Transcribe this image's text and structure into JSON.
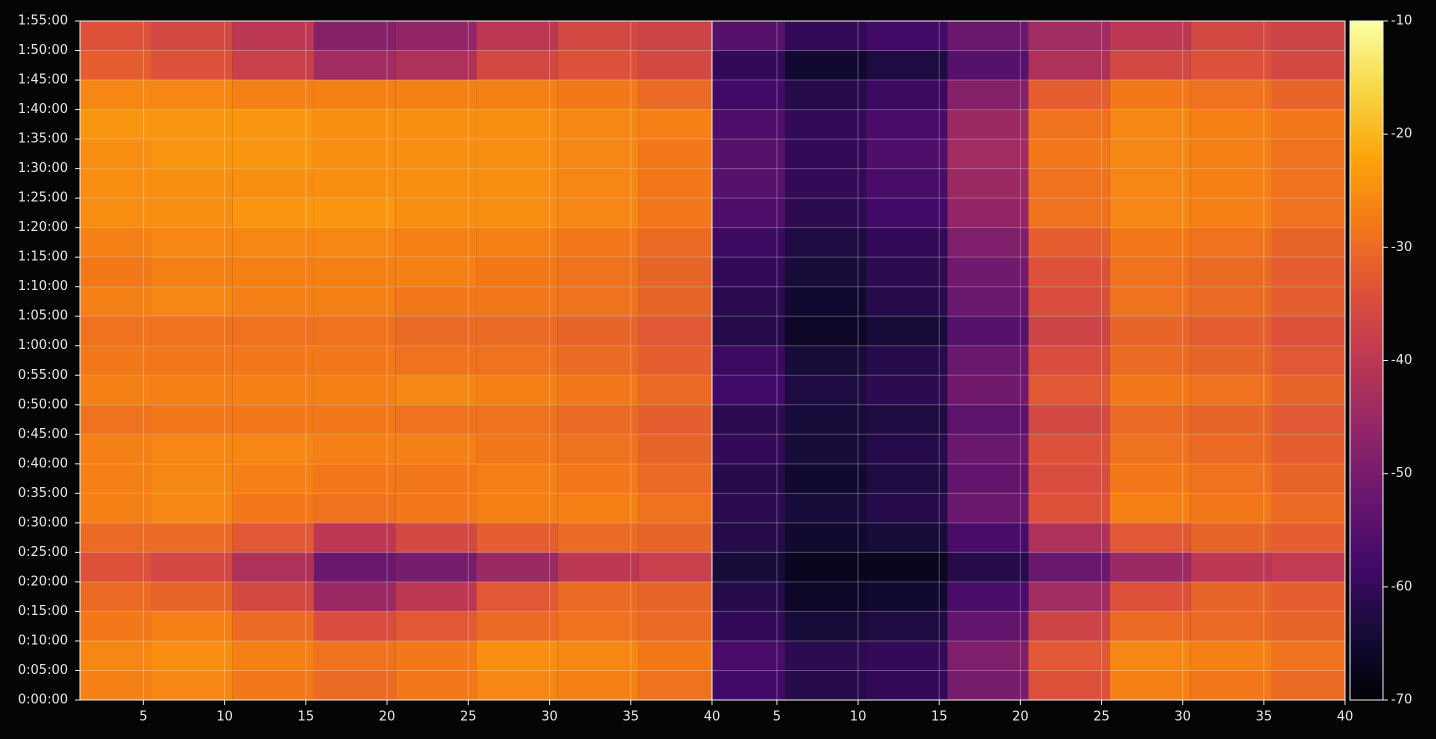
{
  "chart_data": {
    "type": "heatmap",
    "colormap": "inferno",
    "grid": true,
    "clim": [
      -70,
      -10
    ],
    "cticks": [
      -70,
      -60,
      -50,
      -40,
      -30,
      -20,
      -10
    ],
    "ylim": [
      0,
      6900
    ],
    "yticks": [
      {
        "value": 0,
        "label": "0:00:00"
      },
      {
        "value": 300,
        "label": "0:05:00"
      },
      {
        "value": 600,
        "label": "0:10:00"
      },
      {
        "value": 900,
        "label": "0:15:00"
      },
      {
        "value": 1200,
        "label": "0:20:00"
      },
      {
        "value": 1500,
        "label": "0:25:00"
      },
      {
        "value": 1800,
        "label": "0:30:00"
      },
      {
        "value": 2100,
        "label": "0:35:00"
      },
      {
        "value": 2400,
        "label": "0:40:00"
      },
      {
        "value": 2700,
        "label": "0:45:00"
      },
      {
        "value": 3000,
        "label": "0:50:00"
      },
      {
        "value": 3300,
        "label": "0:55:00"
      },
      {
        "value": 3600,
        "label": "1:00:00"
      },
      {
        "value": 3900,
        "label": "1:05:00"
      },
      {
        "value": 4200,
        "label": "1:10:00"
      },
      {
        "value": 4500,
        "label": "1:15:00"
      },
      {
        "value": 4800,
        "label": "1:20:00"
      },
      {
        "value": 5100,
        "label": "1:25:00"
      },
      {
        "value": 5400,
        "label": "1:30:00"
      },
      {
        "value": 5700,
        "label": "1:35:00"
      },
      {
        "value": 6000,
        "label": "1:40:00"
      },
      {
        "value": 6300,
        "label": "1:45:00"
      },
      {
        "value": 6600,
        "label": "1:50:00"
      },
      {
        "value": 6900,
        "label": "1:55:00"
      }
    ],
    "y": [
      150,
      450,
      750,
      1050,
      1350,
      1650,
      1950,
      2250,
      2550,
      2850,
      3150,
      3450,
      3750,
      4050,
      4350,
      4650,
      4950,
      5250,
      5550,
      5850,
      6150,
      6450,
      6750
    ],
    "series": [
      {
        "xlim": [
          1.1,
          40
        ],
        "xticks": [
          5,
          10,
          15,
          20,
          25,
          30,
          35,
          40
        ],
        "x": [
          3,
          8,
          13,
          18,
          23,
          28,
          33,
          38
        ],
        "values": [
          [
            -27,
            -26,
            -28,
            -30,
            -28,
            -26,
            -27,
            -29
          ],
          [
            -26,
            -25,
            -27,
            -29,
            -28,
            -25,
            -26,
            -28
          ],
          [
            -28,
            -27,
            -30,
            -35,
            -33,
            -30,
            -29,
            -30
          ],
          [
            -30,
            -31,
            -36,
            -45,
            -40,
            -33,
            -30,
            -31
          ],
          [
            -34,
            -36,
            -42,
            -52,
            -50,
            -45,
            -40,
            -38
          ],
          [
            -30,
            -30,
            -33,
            -40,
            -36,
            -32,
            -30,
            -31
          ],
          [
            -27,
            -26,
            -28,
            -29,
            -28,
            -27,
            -27,
            -29
          ],
          [
            -27,
            -26,
            -27,
            -28,
            -28,
            -27,
            -28,
            -30
          ],
          [
            -27,
            -26,
            -26,
            -27,
            -27,
            -28,
            -29,
            -31
          ],
          [
            -29,
            -28,
            -28,
            -28,
            -29,
            -29,
            -30,
            -32
          ],
          [
            -27,
            -27,
            -27,
            -27,
            -26,
            -27,
            -28,
            -30
          ],
          [
            -28,
            -28,
            -28,
            -28,
            -29,
            -29,
            -30,
            -32
          ],
          [
            -29,
            -29,
            -29,
            -29,
            -30,
            -30,
            -31,
            -33
          ],
          [
            -27,
            -26,
            -27,
            -27,
            -28,
            -28,
            -29,
            -31
          ],
          [
            -28,
            -27,
            -27,
            -27,
            -27,
            -28,
            -29,
            -31
          ],
          [
            -27,
            -26,
            -26,
            -26,
            -27,
            -27,
            -28,
            -30
          ],
          [
            -25,
            -25,
            -24,
            -24,
            -25,
            -25,
            -26,
            -28
          ],
          [
            -25,
            -25,
            -25,
            -25,
            -25,
            -25,
            -26,
            -28
          ],
          [
            -25,
            -24,
            -24,
            -25,
            -25,
            -25,
            -26,
            -28
          ],
          [
            -24,
            -24,
            -24,
            -25,
            -25,
            -25,
            -26,
            -27
          ],
          [
            -26,
            -26,
            -27,
            -27,
            -27,
            -27,
            -28,
            -30
          ],
          [
            -32,
            -34,
            -38,
            -44,
            -42,
            -36,
            -34,
            -36
          ],
          [
            -34,
            -36,
            -40,
            -48,
            -46,
            -40,
            -36,
            -37
          ]
        ]
      },
      {
        "xlim": [
          1,
          40
        ],
        "xticks": [
          5,
          10,
          15,
          20,
          25,
          30,
          35,
          40
        ],
        "x": [
          3,
          8,
          13,
          18,
          23,
          28,
          33,
          38
        ],
        "values": [
          [
            -58,
            -62,
            -60,
            -50,
            -34,
            -27,
            -28,
            -30
          ],
          [
            -57,
            -61,
            -60,
            -49,
            -33,
            -26,
            -27,
            -29
          ],
          [
            -60,
            -64,
            -63,
            -53,
            -37,
            -30,
            -30,
            -31
          ],
          [
            -62,
            -66,
            -65,
            -57,
            -44,
            -34,
            -31,
            -32
          ],
          [
            -64,
            -67,
            -67,
            -62,
            -52,
            -45,
            -40,
            -39
          ],
          [
            -62,
            -65,
            -64,
            -57,
            -42,
            -33,
            -31,
            -32
          ],
          [
            -61,
            -64,
            -62,
            -52,
            -34,
            -27,
            -28,
            -30
          ],
          [
            -62,
            -65,
            -63,
            -53,
            -35,
            -28,
            -29,
            -31
          ],
          [
            -60,
            -64,
            -62,
            -52,
            -34,
            -29,
            -30,
            -32
          ],
          [
            -61,
            -64,
            -63,
            -54,
            -36,
            -30,
            -31,
            -33
          ],
          [
            -58,
            -63,
            -61,
            -51,
            -33,
            -28,
            -29,
            -31
          ],
          [
            -59,
            -64,
            -62,
            -52,
            -35,
            -30,
            -31,
            -33
          ],
          [
            -62,
            -66,
            -64,
            -55,
            -37,
            -31,
            -32,
            -34
          ],
          [
            -61,
            -65,
            -62,
            -52,
            -35,
            -29,
            -30,
            -32
          ],
          [
            -60,
            -64,
            -61,
            -51,
            -34,
            -29,
            -30,
            -32
          ],
          [
            -59,
            -63,
            -60,
            -49,
            -32,
            -28,
            -29,
            -31
          ],
          [
            -56,
            -61,
            -58,
            -46,
            -29,
            -26,
            -27,
            -29
          ],
          [
            -55,
            -60,
            -57,
            -45,
            -29,
            -26,
            -27,
            -29
          ],
          [
            -55,
            -60,
            -56,
            -44,
            -28,
            -26,
            -27,
            -29
          ],
          [
            -56,
            -60,
            -57,
            -45,
            -29,
            -26,
            -27,
            -28
          ],
          [
            -58,
            -62,
            -59,
            -48,
            -32,
            -28,
            -29,
            -31
          ],
          [
            -60,
            -65,
            -63,
            -55,
            -42,
            -36,
            -34,
            -36
          ],
          [
            -55,
            -60,
            -58,
            -52,
            -44,
            -40,
            -36,
            -37
          ]
        ]
      }
    ]
  }
}
